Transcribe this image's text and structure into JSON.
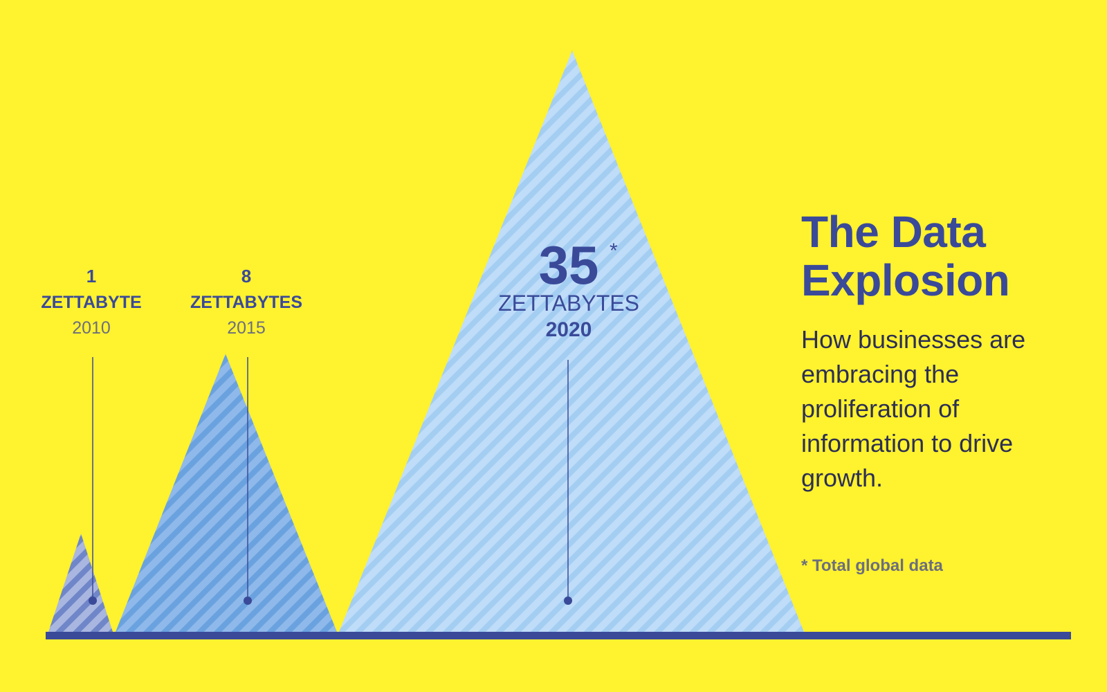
{
  "title_line1": "The Data",
  "title_line2": "Explosion",
  "subtitle": "How businesses are embracing the proliferation of information to drive growth.",
  "footnote": "* Total global data",
  "colors": {
    "background": "#FFF22E",
    "text": "#3A4A99",
    "baseline": "#3A4A99"
  },
  "chart_data": {
    "type": "area",
    "series": [
      {
        "value": "1",
        "unit": "ZETTABYTE",
        "year": "2010",
        "numeric": 1,
        "fill": "#A9B6E0",
        "stripe": "#6F86C8"
      },
      {
        "value": "8",
        "unit": "ZETTABYTES",
        "year": "2015",
        "numeric": 8,
        "fill": "#8FB9EA",
        "stripe": "#6AA2DF"
      },
      {
        "value": "35",
        "unit": "ZETTABYTES",
        "year": "2020",
        "numeric": 35,
        "marker": "*",
        "fill": "#BFDDF8",
        "stripe": "#A4CDF2"
      }
    ]
  }
}
